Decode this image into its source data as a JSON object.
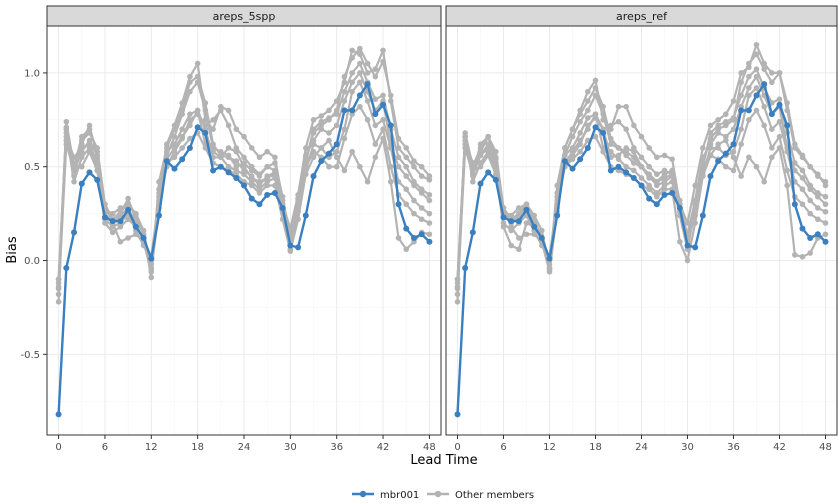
{
  "chart_data": {
    "type": "line",
    "xlabel": "Lead Time",
    "ylabel": "Bias",
    "xlim": [
      -1.5,
      49.5
    ],
    "ylim": [
      -0.93,
      1.25
    ],
    "x_ticks": [
      0,
      6,
      12,
      18,
      24,
      30,
      36,
      42,
      48
    ],
    "y_ticks": [
      -0.5,
      0.0,
      0.5,
      1.0
    ],
    "y_tick_labels": [
      "-0.5",
      "0.0",
      "0.5",
      "1.0"
    ],
    "grid": true,
    "legend_position": "bottom",
    "legend": [
      {
        "label": "mbr001",
        "color": "#3a7fbf"
      },
      {
        "label": "Other members",
        "color": "#b3b3b3"
      }
    ],
    "x": [
      0,
      1,
      2,
      3,
      4,
      5,
      6,
      7,
      8,
      9,
      10,
      11,
      12,
      13,
      14,
      15,
      16,
      17,
      18,
      19,
      20,
      21,
      22,
      23,
      24,
      25,
      26,
      27,
      28,
      29,
      30,
      31,
      32,
      33,
      34,
      35,
      36,
      37,
      38,
      39,
      40,
      41,
      42,
      43,
      44,
      45,
      46,
      47,
      48
    ],
    "panels": [
      {
        "title": "areps_5spp",
        "series": [
          {
            "name": "mbr001",
            "color": "#3a7fbf",
            "values": [
              -0.82,
              -0.04,
              0.15,
              0.41,
              0.47,
              0.43,
              0.23,
              0.21,
              0.21,
              0.27,
              0.18,
              0.12,
              0.01,
              0.24,
              0.53,
              0.49,
              0.54,
              0.6,
              0.71,
              0.68,
              0.48,
              0.5,
              0.47,
              0.44,
              0.4,
              0.33,
              0.3,
              0.35,
              0.36,
              0.28,
              0.08,
              0.07,
              0.24,
              0.45,
              0.53,
              0.57,
              0.62,
              0.8,
              0.8,
              0.88,
              0.94,
              0.78,
              0.83,
              0.72,
              0.3,
              0.17,
              0.12,
              0.14,
              0.1
            ]
          },
          {
            "values": [
              -0.22,
              0.74,
              0.5,
              0.66,
              0.7,
              0.58,
              0.3,
              0.22,
              0.25,
              0.33,
              0.22,
              0.14,
              -0.09,
              0.42,
              0.6,
              0.7,
              0.8,
              0.95,
              0.98,
              0.84,
              0.62,
              0.56,
              0.55,
              0.53,
              0.48,
              0.45,
              0.4,
              0.45,
              0.47,
              0.3,
              0.17,
              0.35,
              0.6,
              0.75,
              0.77,
              0.8,
              0.85,
              0.95,
              1.12,
              1.1,
              1.0,
              1.02,
              1.12,
              0.85,
              0.6,
              0.55,
              0.5,
              0.45,
              0.43
            ]
          },
          {
            "values": [
              -0.1,
              0.71,
              0.45,
              0.62,
              0.72,
              0.55,
              0.27,
              0.25,
              0.28,
              0.3,
              0.25,
              0.16,
              -0.05,
              0.38,
              0.56,
              0.66,
              0.78,
              0.9,
              0.95,
              0.8,
              0.6,
              0.58,
              0.56,
              0.5,
              0.52,
              0.48,
              0.45,
              0.5,
              0.52,
              0.34,
              0.12,
              0.32,
              0.55,
              0.68,
              0.72,
              0.75,
              0.8,
              0.98,
              1.08,
              1.13,
              1.05,
              0.98,
              1.06,
              0.88,
              0.65,
              0.6,
              0.53,
              0.5,
              0.45
            ]
          },
          {
            "values": [
              -0.15,
              0.66,
              0.55,
              0.6,
              0.62,
              0.52,
              0.25,
              0.2,
              0.24,
              0.28,
              0.2,
              0.1,
              0.02,
              0.34,
              0.62,
              0.72,
              0.84,
              0.98,
              1.05,
              0.75,
              0.7,
              0.82,
              0.8,
              0.7,
              0.66,
              0.6,
              0.55,
              0.58,
              0.55,
              0.32,
              0.1,
              0.28,
              0.52,
              0.7,
              0.74,
              0.76,
              0.78,
              0.9,
              1.0,
              1.05,
              0.95,
              0.86,
              0.88,
              0.7,
              0.55,
              0.5,
              0.42,
              0.38,
              0.35
            ]
          },
          {
            "values": [
              -0.12,
              0.68,
              0.42,
              0.55,
              0.6,
              0.5,
              0.22,
              0.18,
              0.2,
              0.25,
              0.16,
              0.08,
              0.0,
              0.3,
              0.5,
              0.58,
              0.65,
              0.75,
              0.78,
              0.72,
              0.75,
              0.8,
              0.72,
              0.6,
              0.55,
              0.5,
              0.46,
              0.5,
              0.48,
              0.28,
              0.1,
              0.26,
              0.48,
              0.62,
              0.6,
              0.55,
              0.58,
              0.7,
              0.9,
              0.95,
              0.85,
              0.72,
              0.75,
              0.6,
              0.42,
              0.38,
              0.32,
              0.28,
              0.25
            ]
          },
          {
            "values": [
              -0.18,
              0.62,
              0.48,
              0.58,
              0.64,
              0.56,
              0.28,
              0.22,
              0.26,
              0.3,
              0.24,
              0.14,
              -0.02,
              0.36,
              0.58,
              0.62,
              0.7,
              0.78,
              0.8,
              0.62,
              0.58,
              0.55,
              0.5,
              0.48,
              0.46,
              0.42,
              0.38,
              0.42,
              0.44,
              0.26,
              0.06,
              0.3,
              0.5,
              0.58,
              0.55,
              0.5,
              0.5,
              0.65,
              0.78,
              0.82,
              0.75,
              0.62,
              0.7,
              0.5,
              0.35,
              0.3,
              0.25,
              0.22,
              0.2
            ]
          },
          {
            "values": [
              -0.14,
              0.64,
              0.5,
              0.5,
              0.58,
              0.48,
              0.2,
              0.15,
              0.18,
              0.22,
              0.18,
              0.12,
              -0.04,
              0.32,
              0.52,
              0.55,
              0.6,
              0.65,
              0.68,
              0.6,
              0.52,
              0.5,
              0.48,
              0.46,
              0.42,
              0.4,
              0.36,
              0.4,
              0.4,
              0.22,
              0.05,
              0.22,
              0.46,
              0.55,
              0.6,
              0.64,
              0.55,
              0.48,
              0.58,
              0.5,
              0.42,
              0.55,
              0.65,
              0.42,
              0.12,
              0.06,
              0.1,
              0.15,
              0.14
            ]
          },
          {
            "values": [
              -0.1,
              0.7,
              0.46,
              0.64,
              0.68,
              0.6,
              0.3,
              0.2,
              0.1,
              0.12,
              0.14,
              0.1,
              -0.06,
              0.28,
              0.54,
              0.6,
              0.66,
              0.72,
              0.8,
              0.7,
              0.55,
              0.55,
              0.6,
              0.58,
              0.5,
              0.44,
              0.42,
              0.44,
              0.46,
              0.3,
              0.14,
              0.33,
              0.56,
              0.64,
              0.7,
              0.68,
              0.72,
              0.85,
              0.95,
              1.0,
              0.9,
              0.8,
              0.85,
              0.62,
              0.5,
              0.45,
              0.4,
              0.36,
              0.32
            ]
          }
        ]
      },
      {
        "title": "areps_ref",
        "series": [
          {
            "name": "mbr001",
            "color": "#3a7fbf",
            "values": [
              -0.82,
              -0.04,
              0.15,
              0.41,
              0.47,
              0.43,
              0.23,
              0.21,
              0.21,
              0.27,
              0.18,
              0.12,
              0.01,
              0.24,
              0.53,
              0.49,
              0.54,
              0.6,
              0.71,
              0.68,
              0.48,
              0.5,
              0.47,
              0.44,
              0.4,
              0.33,
              0.3,
              0.35,
              0.36,
              0.28,
              0.08,
              0.07,
              0.24,
              0.45,
              0.53,
              0.57,
              0.62,
              0.8,
              0.8,
              0.88,
              0.94,
              0.78,
              0.83,
              0.72,
              0.3,
              0.17,
              0.12,
              0.14,
              0.1
            ]
          },
          {
            "values": [
              -0.22,
              0.68,
              0.5,
              0.6,
              0.66,
              0.55,
              0.28,
              0.22,
              0.25,
              0.3,
              0.2,
              0.12,
              -0.05,
              0.4,
              0.6,
              0.7,
              0.78,
              0.85,
              0.92,
              0.82,
              0.65,
              0.6,
              0.58,
              0.55,
              0.5,
              0.45,
              0.4,
              0.42,
              0.45,
              0.3,
              0.2,
              0.4,
              0.6,
              0.72,
              0.75,
              0.78,
              0.85,
              1.0,
              1.03,
              1.15,
              1.05,
              1.0,
              1.0,
              0.8,
              0.6,
              0.55,
              0.5,
              0.45,
              0.42
            ]
          },
          {
            "values": [
              -0.1,
              0.66,
              0.45,
              0.58,
              0.66,
              0.54,
              0.26,
              0.24,
              0.28,
              0.3,
              0.24,
              0.16,
              -0.04,
              0.36,
              0.56,
              0.66,
              0.74,
              0.8,
              0.88,
              0.78,
              0.62,
              0.6,
              0.56,
              0.52,
              0.5,
              0.46,
              0.42,
              0.46,
              0.48,
              0.32,
              0.12,
              0.3,
              0.52,
              0.65,
              0.7,
              0.72,
              0.75,
              0.95,
              1.05,
              1.1,
              1.02,
              0.95,
              1.0,
              0.84,
              0.62,
              0.56,
              0.5,
              0.46,
              0.4
            ]
          },
          {
            "values": [
              -0.15,
              0.64,
              0.52,
              0.56,
              0.6,
              0.5,
              0.24,
              0.2,
              0.24,
              0.28,
              0.2,
              0.1,
              0.02,
              0.32,
              0.6,
              0.7,
              0.8,
              0.9,
              0.96,
              0.75,
              0.7,
              0.82,
              0.82,
              0.72,
              0.66,
              0.6,
              0.55,
              0.56,
              0.54,
              0.3,
              0.1,
              0.26,
              0.5,
              0.68,
              0.72,
              0.74,
              0.76,
              0.88,
              0.98,
              1.02,
              0.92,
              0.84,
              0.86,
              0.68,
              0.52,
              0.48,
              0.4,
              0.36,
              0.34
            ]
          },
          {
            "values": [
              -0.12,
              0.66,
              0.42,
              0.52,
              0.58,
              0.48,
              0.2,
              0.16,
              0.2,
              0.24,
              0.16,
              0.08,
              0.0,
              0.28,
              0.5,
              0.56,
              0.62,
              0.72,
              0.76,
              0.7,
              0.72,
              0.74,
              0.7,
              0.6,
              0.55,
              0.5,
              0.46,
              0.48,
              0.46,
              0.26,
              0.1,
              0.24,
              0.46,
              0.6,
              0.6,
              0.56,
              0.58,
              0.7,
              0.88,
              0.92,
              0.82,
              0.7,
              0.74,
              0.58,
              0.42,
              0.38,
              0.32,
              0.28,
              0.26
            ]
          },
          {
            "values": [
              -0.18,
              0.6,
              0.46,
              0.56,
              0.62,
              0.52,
              0.26,
              0.2,
              0.24,
              0.28,
              0.22,
              0.12,
              -0.02,
              0.34,
              0.56,
              0.6,
              0.68,
              0.76,
              0.78,
              0.6,
              0.58,
              0.54,
              0.5,
              0.48,
              0.44,
              0.4,
              0.36,
              0.4,
              0.42,
              0.24,
              0.06,
              0.28,
              0.48,
              0.56,
              0.54,
              0.5,
              0.48,
              0.62,
              0.75,
              0.8,
              0.72,
              0.6,
              0.66,
              0.48,
              0.34,
              0.3,
              0.25,
              0.22,
              0.2
            ]
          },
          {
            "values": [
              -0.14,
              0.62,
              0.48,
              0.5,
              0.56,
              0.46,
              0.18,
              0.08,
              0.06,
              0.2,
              0.18,
              0.12,
              -0.04,
              0.3,
              0.5,
              0.54,
              0.58,
              0.64,
              0.66,
              0.58,
              0.5,
              0.48,
              0.46,
              0.44,
              0.4,
              0.38,
              0.34,
              0.38,
              0.38,
              0.1,
              0.0,
              0.2,
              0.45,
              0.56,
              0.62,
              0.64,
              0.55,
              0.45,
              0.55,
              0.5,
              0.42,
              0.55,
              0.6,
              0.4,
              0.03,
              0.02,
              0.04,
              0.12,
              0.14
            ]
          },
          {
            "values": [
              -0.1,
              0.66,
              0.46,
              0.62,
              0.66,
              0.58,
              0.28,
              0.18,
              0.12,
              0.14,
              0.14,
              0.1,
              -0.06,
              0.26,
              0.52,
              0.58,
              0.64,
              0.7,
              0.78,
              0.7,
              0.55,
              0.56,
              0.6,
              0.58,
              0.5,
              0.44,
              0.42,
              0.44,
              0.46,
              0.28,
              0.14,
              0.32,
              0.55,
              0.62,
              0.68,
              0.66,
              0.7,
              0.82,
              0.92,
              0.98,
              0.88,
              0.78,
              0.82,
              0.6,
              0.48,
              0.44,
              0.38,
              0.34,
              0.3
            ]
          }
        ]
      }
    ]
  }
}
